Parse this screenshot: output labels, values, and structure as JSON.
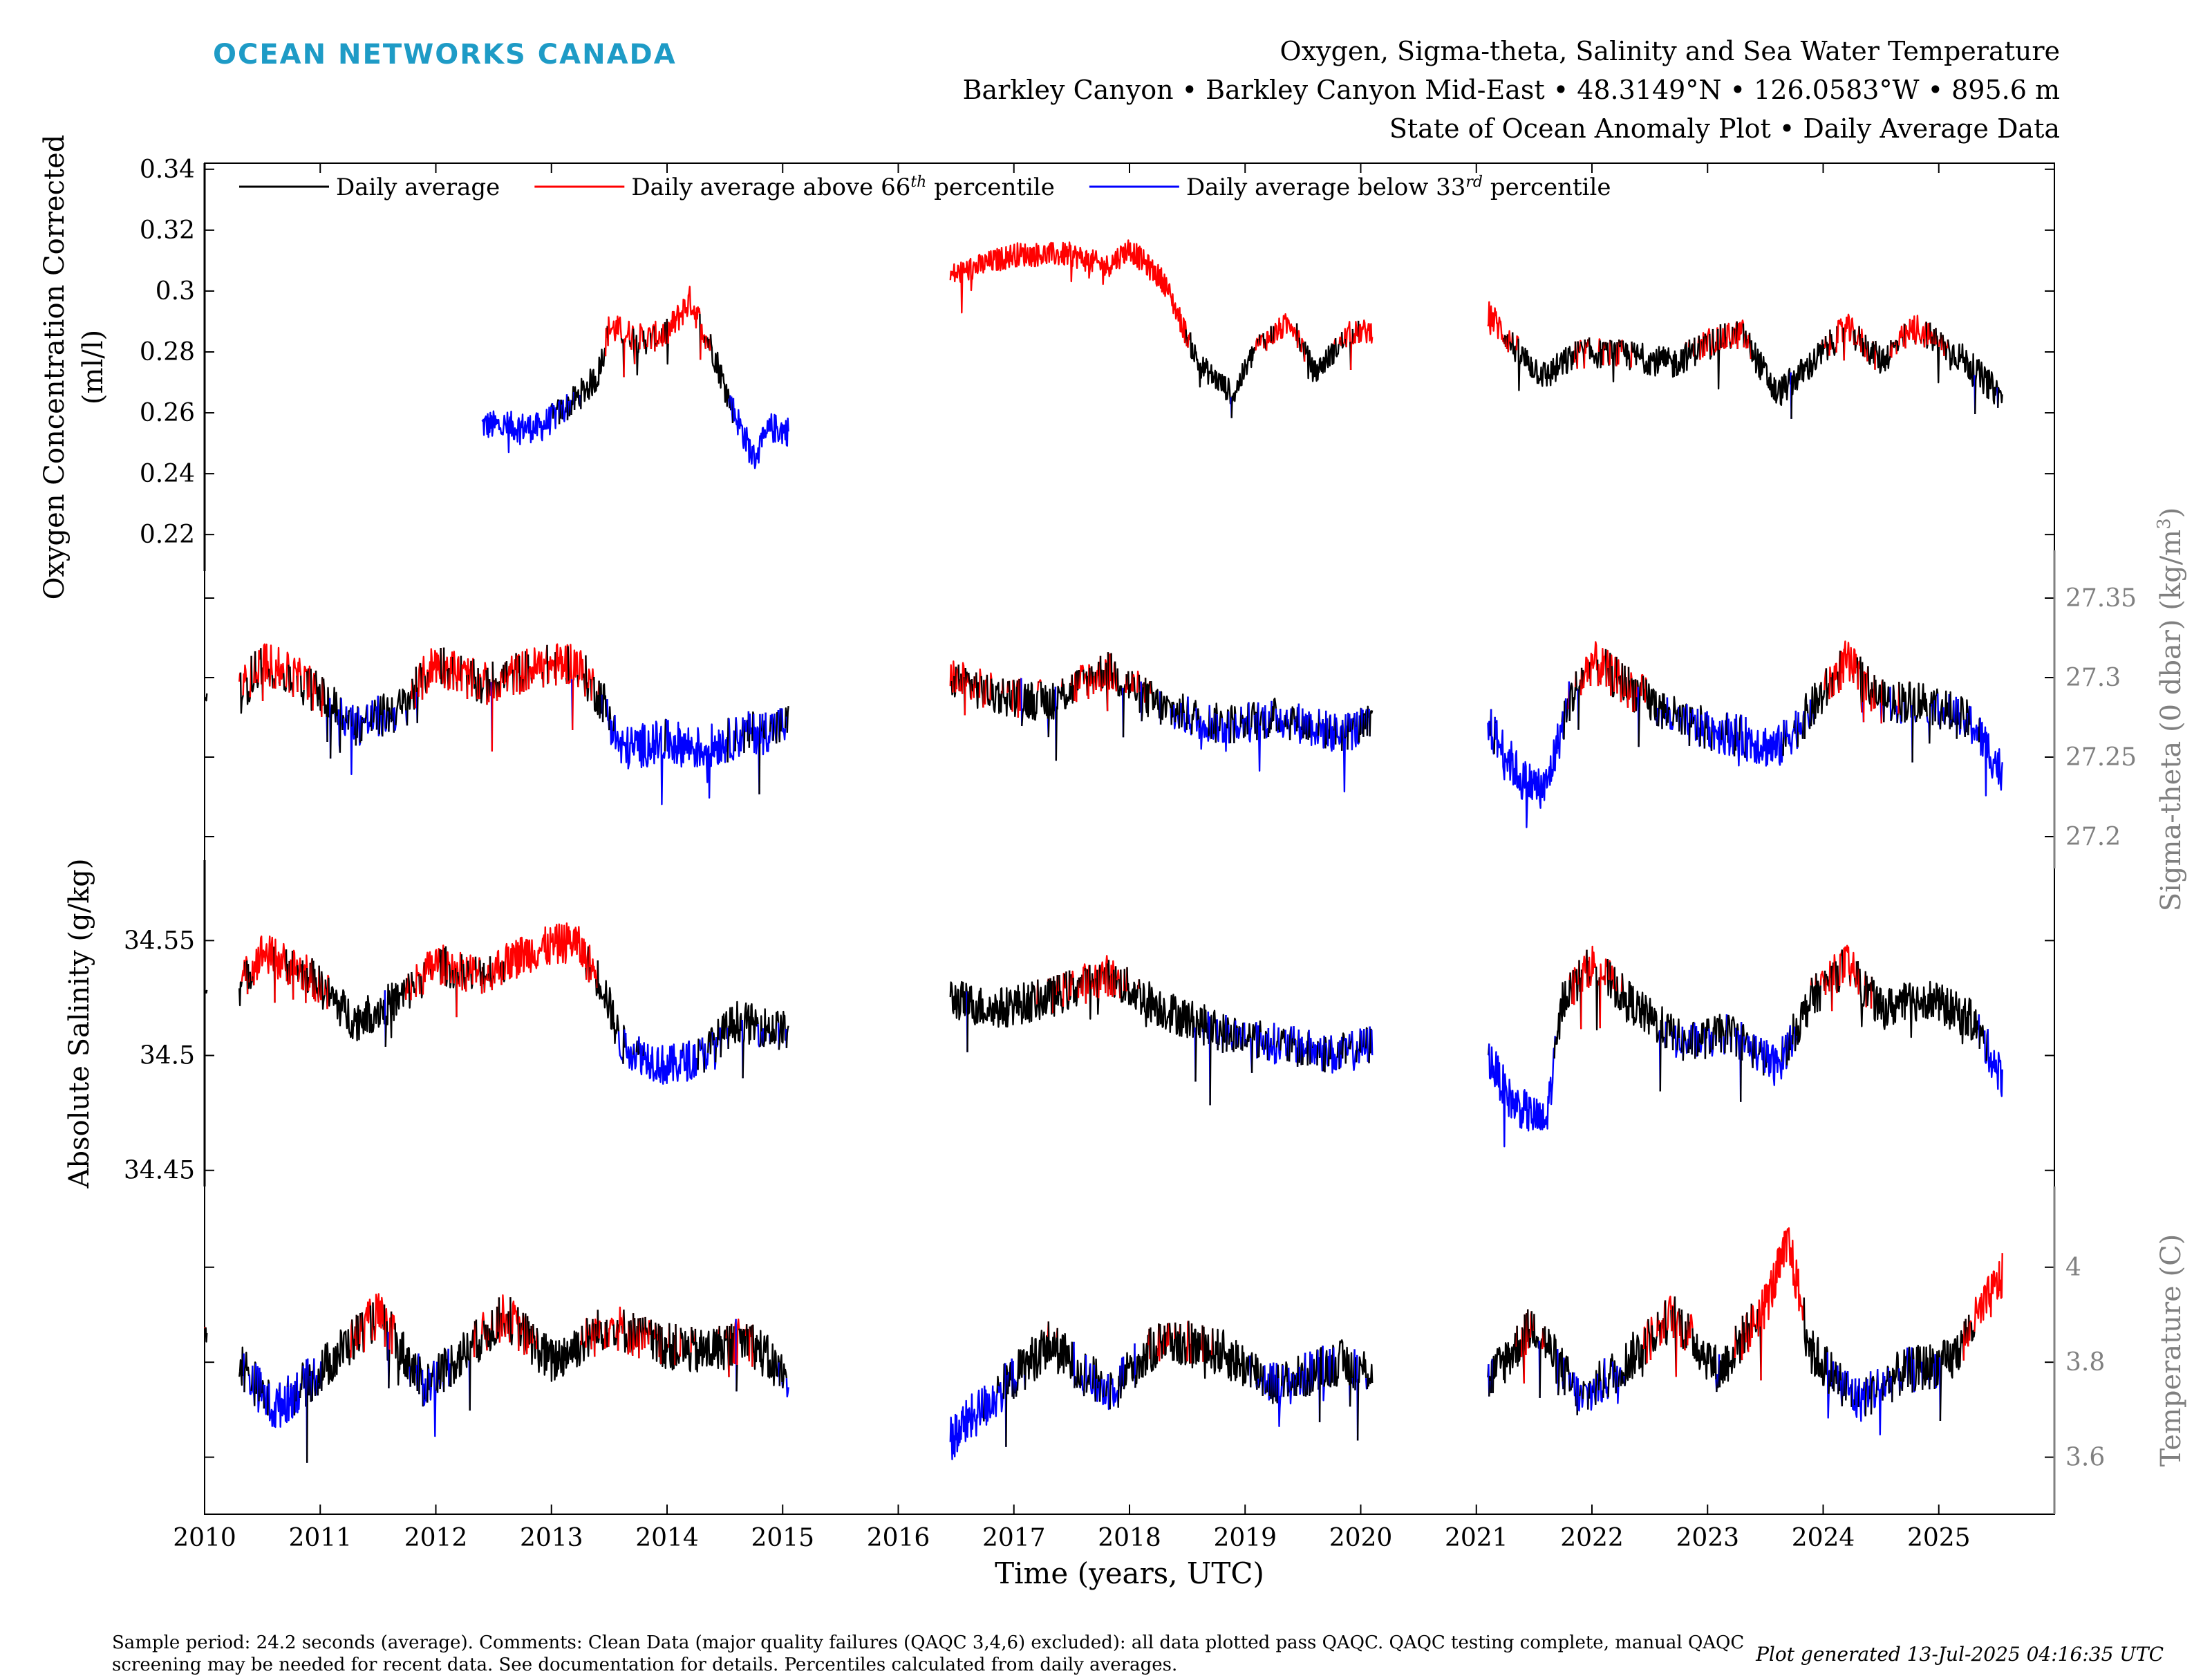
{
  "header": {
    "brand": "OCEAN NETWORKS CANADA",
    "title_line1": "Oxygen, Sigma-theta, Salinity and Sea Water Temperature",
    "title_line2": "Barkley Canyon • Barkley Canyon Mid-East • 48.3149°N • 126.0583°W • 895.6 m",
    "title_line3": "State of Ocean Anomaly Plot • Daily Average Data"
  },
  "footer": {
    "comments": "Sample period: 24.2 seconds (average). Comments: Clean Data (major quality failures (QAQC 3,4,6) excluded): all data plotted pass QAQC. QAQC testing complete, manual QAQC screening may be needed for recent data. See documentation for details. Percentiles calculated from daily averages.",
    "generated": "Plot generated 13-Jul-2025 04:16:35 UTC"
  },
  "colors": {
    "brand": "#1e9bc6",
    "average": "#000000",
    "above": "#ff0000",
    "below": "#0000ff",
    "right_axis": "#808080"
  },
  "chart_data": {
    "type": "line",
    "xlabel": "Time (years, UTC)",
    "xlim": [
      2010,
      2026
    ],
    "xticks": [
      "2010",
      "2011",
      "2012",
      "2013",
      "2014",
      "2015",
      "2016",
      "2017",
      "2018",
      "2019",
      "2020",
      "2021",
      "2022",
      "2023",
      "2024",
      "2025"
    ],
    "legend": {
      "placement": "top-left",
      "entries": [
        {
          "color": "#000000",
          "text": "Daily average",
          "sup": "",
          "suffix": ""
        },
        {
          "color": "#ff0000",
          "text": "Daily average above 66",
          "sup": "th",
          "suffix": " percentile"
        },
        {
          "color": "#0000ff",
          "text": "Daily average below 33",
          "sup": "rd",
          "suffix": " percentile"
        }
      ]
    },
    "panels": [
      {
        "name": "oxygen",
        "ylabel_line1": "Oxygen Concentration Corrected",
        "ylabel_line2": "(ml/l)",
        "axis_side": "left",
        "ylim": [
          0.208,
          0.342
        ],
        "yticks": [
          "0.22",
          "0.24",
          "0.26",
          "0.28",
          "0.3",
          "0.32",
          "0.34"
        ],
        "segments": [
          {
            "start": 2012.4,
            "end": 2015.05,
            "knots": [
              [
                2012.4,
                0.256
              ],
              [
                2012.9,
                0.255
              ],
              [
                2013.2,
                0.264
              ],
              [
                2013.4,
                0.272
              ],
              [
                2013.5,
                0.288
              ],
              [
                2013.8,
                0.284
              ],
              [
                2014.0,
                0.286
              ],
              [
                2014.2,
                0.297
              ],
              [
                2014.4,
                0.28
              ],
              [
                2014.55,
                0.263
              ],
              [
                2014.75,
                0.245
              ],
              [
                2014.9,
                0.255
              ],
              [
                2015.05,
                0.254
              ]
            ],
            "noise": 0.005
          },
          {
            "start": 2016.45,
            "end": 2020.1,
            "knots": [
              [
                2016.45,
                0.305
              ],
              [
                2017.0,
                0.312
              ],
              [
                2017.5,
                0.312
              ],
              [
                2017.8,
                0.308
              ],
              [
                2018.0,
                0.314
              ],
              [
                2018.3,
                0.303
              ],
              [
                2018.6,
                0.276
              ],
              [
                2018.9,
                0.266
              ],
              [
                2019.1,
                0.282
              ],
              [
                2019.4,
                0.29
              ],
              [
                2019.6,
                0.273
              ],
              [
                2019.9,
                0.286
              ],
              [
                2020.1,
                0.287
              ]
            ],
            "noise": 0.004
          },
          {
            "start": 2021.1,
            "end": 2025.55,
            "knots": [
              [
                2021.1,
                0.293
              ],
              [
                2021.4,
                0.278
              ],
              [
                2021.6,
                0.272
              ],
              [
                2021.9,
                0.28
              ],
              [
                2022.3,
                0.279
              ],
              [
                2022.7,
                0.276
              ],
              [
                2023.0,
                0.283
              ],
              [
                2023.3,
                0.286
              ],
              [
                2023.6,
                0.266
              ],
              [
                2023.9,
                0.276
              ],
              [
                2024.2,
                0.288
              ],
              [
                2024.5,
                0.277
              ],
              [
                2024.8,
                0.288
              ],
              [
                2025.2,
                0.278
              ],
              [
                2025.55,
                0.265
              ]
            ],
            "noise": 0.005
          }
        ],
        "thresholds": [
          0.262,
          0.283
        ]
      },
      {
        "name": "sigma-theta",
        "ylabel_line1": "Sigma-theta (0 dbar) (kg/m",
        "ylabel_sup": "3",
        "ylabel_line2": "",
        "axis_side": "right",
        "ylim": [
          27.18,
          27.38
        ],
        "yticks": [
          "27.2",
          "27.25",
          "27.3",
          "27.35"
        ],
        "segments": [
          {
            "start": 2010.0,
            "end": 2010.02,
            "knots": [
              [
                2010.0,
                27.285
              ],
              [
                2010.02,
                27.29
              ]
            ],
            "noise": 0.004
          },
          {
            "start": 2010.3,
            "end": 2015.05,
            "knots": [
              [
                2010.3,
                27.29
              ],
              [
                2010.5,
                27.31
              ],
              [
                2010.9,
                27.295
              ],
              [
                2011.3,
                27.27
              ],
              [
                2011.7,
                27.28
              ],
              [
                2012.0,
                27.31
              ],
              [
                2012.4,
                27.295
              ],
              [
                2012.8,
                27.305
              ],
              [
                2013.2,
                27.31
              ],
              [
                2013.45,
                27.285
              ],
              [
                2013.6,
                27.255
              ],
              [
                2014.0,
                27.26
              ],
              [
                2014.3,
                27.255
              ],
              [
                2014.7,
                27.265
              ],
              [
                2015.05,
                27.27
              ]
            ],
            "noise": 0.014
          },
          {
            "start": 2016.45,
            "end": 2020.1,
            "knots": [
              [
                2016.45,
                27.3
              ],
              [
                2016.8,
                27.29
              ],
              [
                2017.3,
                27.285
              ],
              [
                2017.8,
                27.305
              ],
              [
                2018.3,
                27.28
              ],
              [
                2018.8,
                27.27
              ],
              [
                2019.3,
                27.275
              ],
              [
                2019.8,
                27.265
              ],
              [
                2020.1,
                27.27
              ]
            ],
            "noise": 0.013
          },
          {
            "start": 2021.1,
            "end": 2025.55,
            "knots": [
              [
                2021.1,
                27.27
              ],
              [
                2021.4,
                27.235
              ],
              [
                2021.6,
                27.23
              ],
              [
                2021.8,
                27.285
              ],
              [
                2022.0,
                27.31
              ],
              [
                2022.4,
                27.29
              ],
              [
                2022.8,
                27.27
              ],
              [
                2023.2,
                27.265
              ],
              [
                2023.6,
                27.255
              ],
              [
                2023.9,
                27.28
              ],
              [
                2024.2,
                27.31
              ],
              [
                2024.5,
                27.285
              ],
              [
                2024.9,
                27.285
              ],
              [
                2025.3,
                27.27
              ],
              [
                2025.55,
                27.24
              ]
            ],
            "noise": 0.014
          }
        ],
        "thresholds": [
          27.273,
          27.297
        ]
      },
      {
        "name": "salinity",
        "ylabel_line1": "Absolute Salinity (g/kg)",
        "ylabel_line2": "",
        "axis_side": "left",
        "ylim": [
          34.443,
          34.585
        ],
        "yticks": [
          "34.45",
          "34.5",
          "34.55"
        ],
        "segments": [
          {
            "start": 2010.0,
            "end": 2010.02,
            "knots": [
              [
                2010.0,
                34.527
              ],
              [
                2010.02,
                34.53
              ]
            ],
            "noise": 0.002
          },
          {
            "start": 2010.3,
            "end": 2015.05,
            "knots": [
              [
                2010.3,
                34.53
              ],
              [
                2010.5,
                34.545
              ],
              [
                2010.9,
                34.535
              ],
              [
                2011.3,
                34.515
              ],
              [
                2011.7,
                34.525
              ],
              [
                2012.0,
                34.54
              ],
              [
                2012.4,
                34.535
              ],
              [
                2012.8,
                34.545
              ],
              [
                2013.2,
                34.55
              ],
              [
                2013.45,
                34.53
              ],
              [
                2013.6,
                34.505
              ],
              [
                2014.0,
                34.495
              ],
              [
                2014.3,
                34.5
              ],
              [
                2014.6,
                34.515
              ],
              [
                2015.05,
                34.51
              ]
            ],
            "noise": 0.009
          },
          {
            "start": 2016.45,
            "end": 2020.1,
            "knots": [
              [
                2016.45,
                34.525
              ],
              [
                2016.8,
                34.52
              ],
              [
                2017.3,
                34.525
              ],
              [
                2017.8,
                34.535
              ],
              [
                2018.3,
                34.52
              ],
              [
                2018.8,
                34.51
              ],
              [
                2019.3,
                34.505
              ],
              [
                2019.8,
                34.5
              ],
              [
                2020.1,
                34.505
              ]
            ],
            "noise": 0.009
          },
          {
            "start": 2021.1,
            "end": 2025.55,
            "knots": [
              [
                2021.1,
                34.5
              ],
              [
                2021.3,
                34.48
              ],
              [
                2021.6,
                34.47
              ],
              [
                2021.75,
                34.525
              ],
              [
                2022.0,
                34.54
              ],
              [
                2022.4,
                34.52
              ],
              [
                2022.8,
                34.505
              ],
              [
                2023.2,
                34.51
              ],
              [
                2023.6,
                34.495
              ],
              [
                2023.9,
                34.525
              ],
              [
                2024.2,
                34.54
              ],
              [
                2024.5,
                34.52
              ],
              [
                2024.9,
                34.525
              ],
              [
                2025.3,
                34.515
              ],
              [
                2025.55,
                34.49
              ]
            ],
            "noise": 0.009
          }
        ],
        "thresholds": [
          34.505,
          34.533
        ]
      },
      {
        "name": "temperature",
        "ylabel_line1": "Temperature (C)",
        "ylabel_line2": "",
        "axis_side": "right",
        "ylim": [
          3.48,
          4.17
        ],
        "yticks": [
          "3.6",
          "3.8",
          "4"
        ],
        "segments": [
          {
            "start": 2010.0,
            "end": 2010.02,
            "knots": [
              [
                2010.0,
                3.87
              ],
              [
                2010.02,
                3.86
              ]
            ],
            "noise": 0.02
          },
          {
            "start": 2010.3,
            "end": 2015.05,
            "knots": [
              [
                2010.3,
                3.8
              ],
              [
                2010.6,
                3.7
              ],
              [
                2011.0,
                3.78
              ],
              [
                2011.5,
                3.9
              ],
              [
                2011.9,
                3.75
              ],
              [
                2012.3,
                3.83
              ],
              [
                2012.6,
                3.9
              ],
              [
                2013.0,
                3.8
              ],
              [
                2013.5,
                3.88
              ],
              [
                2013.9,
                3.84
              ],
              [
                2014.3,
                3.82
              ],
              [
                2014.7,
                3.85
              ],
              [
                2015.05,
                3.76
              ]
            ],
            "noise": 0.05
          },
          {
            "start": 2016.45,
            "end": 2020.1,
            "knots": [
              [
                2016.45,
                3.64
              ],
              [
                2016.8,
                3.72
              ],
              [
                2017.3,
                3.84
              ],
              [
                2017.8,
                3.74
              ],
              [
                2018.3,
                3.85
              ],
              [
                2018.8,
                3.82
              ],
              [
                2019.3,
                3.75
              ],
              [
                2019.8,
                3.8
              ],
              [
                2020.1,
                3.78
              ]
            ],
            "noise": 0.05
          },
          {
            "start": 2021.1,
            "end": 2025.55,
            "knots": [
              [
                2021.1,
                3.76
              ],
              [
                2021.5,
                3.88
              ],
              [
                2021.9,
                3.72
              ],
              [
                2022.3,
                3.8
              ],
              [
                2022.7,
                3.9
              ],
              [
                2023.1,
                3.78
              ],
              [
                2023.5,
                3.92
              ],
              [
                2023.7,
                4.05
              ],
              [
                2023.9,
                3.82
              ],
              [
                2024.3,
                3.72
              ],
              [
                2024.7,
                3.78
              ],
              [
                2025.1,
                3.8
              ],
              [
                2025.55,
                3.98
              ]
            ],
            "noise": 0.05
          }
        ],
        "thresholds": [
          3.75,
          3.87
        ]
      }
    ]
  }
}
